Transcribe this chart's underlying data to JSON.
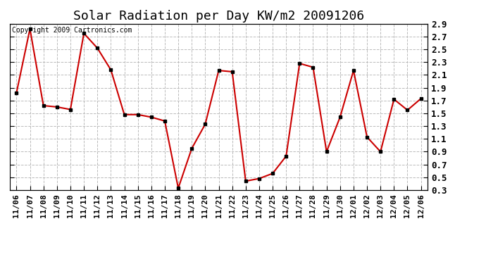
{
  "title": "Solar Radiation per Day KW/m2 20091206",
  "copyright": "Copyright 2009 Cartronics.com",
  "dates": [
    "11/06",
    "11/07",
    "11/08",
    "11/09",
    "11/10",
    "11/11",
    "11/12",
    "11/13",
    "11/14",
    "11/15",
    "11/16",
    "11/17",
    "11/18",
    "11/19",
    "11/20",
    "11/21",
    "11/22",
    "11/23",
    "11/24",
    "11/25",
    "11/26",
    "11/27",
    "11/28",
    "11/29",
    "11/30",
    "12/01",
    "12/02",
    "12/03",
    "12/04",
    "12/05",
    "12/06"
  ],
  "values": [
    1.82,
    2.82,
    1.62,
    1.6,
    1.56,
    2.75,
    2.52,
    2.18,
    1.48,
    1.48,
    1.44,
    1.38,
    0.33,
    0.95,
    1.33,
    2.17,
    2.15,
    0.44,
    0.48,
    0.56,
    0.83,
    2.28,
    2.22,
    0.9,
    1.44,
    2.17,
    1.13,
    0.9,
    1.72,
    1.55,
    1.73
  ],
  "line_color": "#cc0000",
  "marker_color": "#000000",
  "bg_color": "#ffffff",
  "grid_color": "#bbbbbb",
  "ylim": [
    0.3,
    2.9
  ],
  "yticks": [
    0.3,
    0.5,
    0.7,
    0.9,
    1.1,
    1.3,
    1.5,
    1.7,
    1.9,
    2.1,
    2.3,
    2.5,
    2.7,
    2.9
  ],
  "title_fontsize": 13,
  "copyright_fontsize": 7,
  "tick_fontsize": 9,
  "xtick_fontsize": 8
}
